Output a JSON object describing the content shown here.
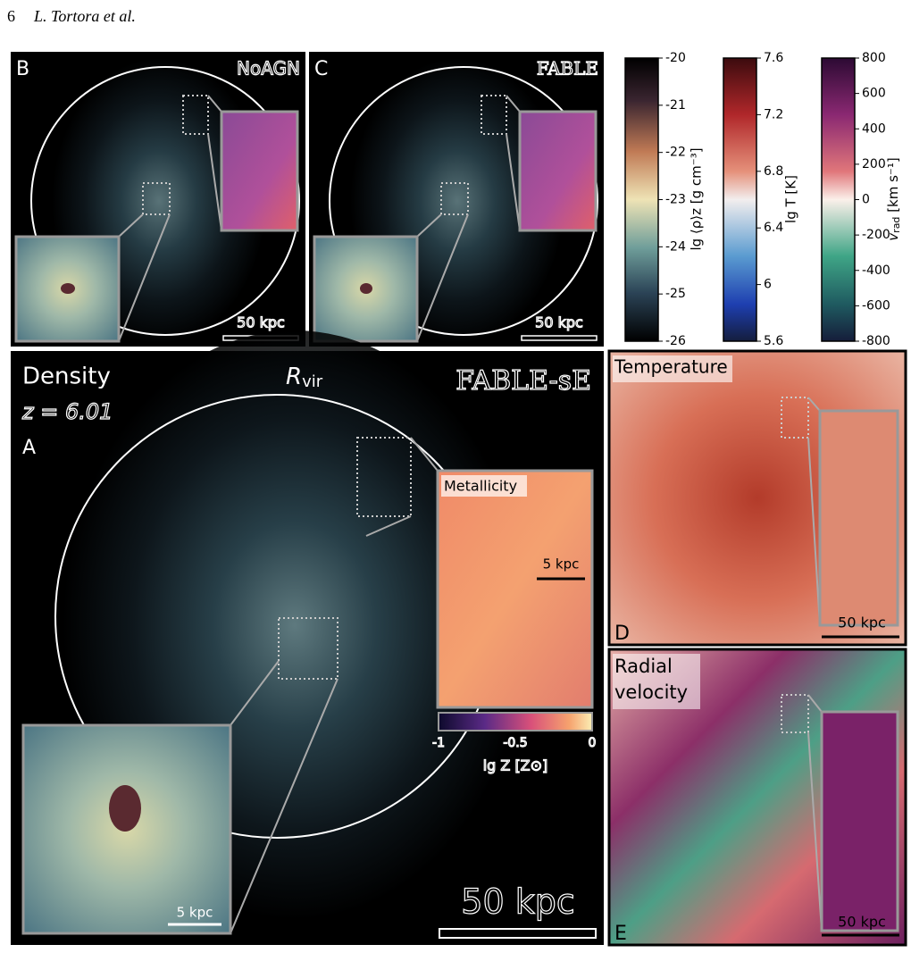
{
  "header": {
    "page_number": "6",
    "authors": "L. Tortora et al."
  },
  "panels": {
    "B": {
      "letter": "B",
      "label": "NoAGN",
      "scale": "50 kpc"
    },
    "C": {
      "letter": "C",
      "label": "FABLE",
      "scale": "50 kpc"
    },
    "A": {
      "title": "Density",
      "redshift": "z = 6.01",
      "letter": "A",
      "rvir": "R",
      "rvir_sub": "vir",
      "label": "FABLE-sE",
      "inset_title": "Metallicity",
      "inset_scale": "5 kpc",
      "inset_colorbar": {
        "ticks": [
          -1,
          -0.5,
          0
        ],
        "label": "lg Z [Z⊙]"
      },
      "zoom_scale": "5 kpc",
      "scale": "50 kpc"
    },
    "D": {
      "title": "Temperature",
      "letter": "D",
      "scale": "50 kpc"
    },
    "E": {
      "title_lines": [
        "Radial",
        "velocity"
      ],
      "letter": "E",
      "scale": "50 kpc"
    }
  },
  "colorbars": [
    {
      "label": "lg ⟨ρ⟩z [g cm⁻³]",
      "ticks": [
        -20,
        -21,
        -22,
        -23,
        -24,
        -25,
        -26
      ]
    },
    {
      "label": "lg T [K]",
      "ticks": [
        7.6,
        7.2,
        6.8,
        6.4,
        6,
        5.6
      ]
    },
    {
      "label": "v",
      "label_sub": "rad",
      "label_rest": " [km s⁻¹]",
      "ticks": [
        800,
        600,
        400,
        200,
        0,
        -200,
        -400,
        -600,
        -800
      ]
    }
  ]
}
